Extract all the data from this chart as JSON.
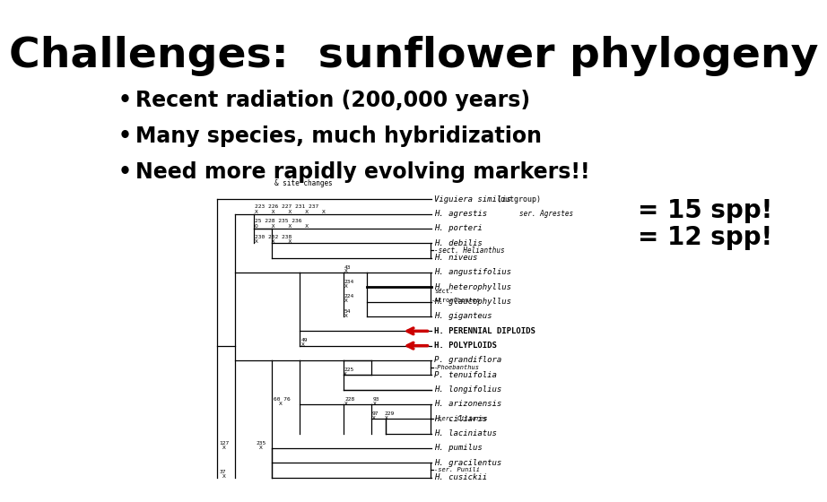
{
  "title": "Challenges:  sunflower phylogeny",
  "bullets": [
    "Recent radiation (200,000 years)",
    "Many species, much hybridization",
    "Need more rapidly evolving markers!!"
  ],
  "annotation1": "= 15 spp!",
  "annotation2": "= 12 spp!",
  "bg_color": "#ffffff",
  "title_fontsize": 34,
  "bullet_fontsize": 17,
  "annotation_fontsize": 20,
  "arrow_color": "#cc0000"
}
